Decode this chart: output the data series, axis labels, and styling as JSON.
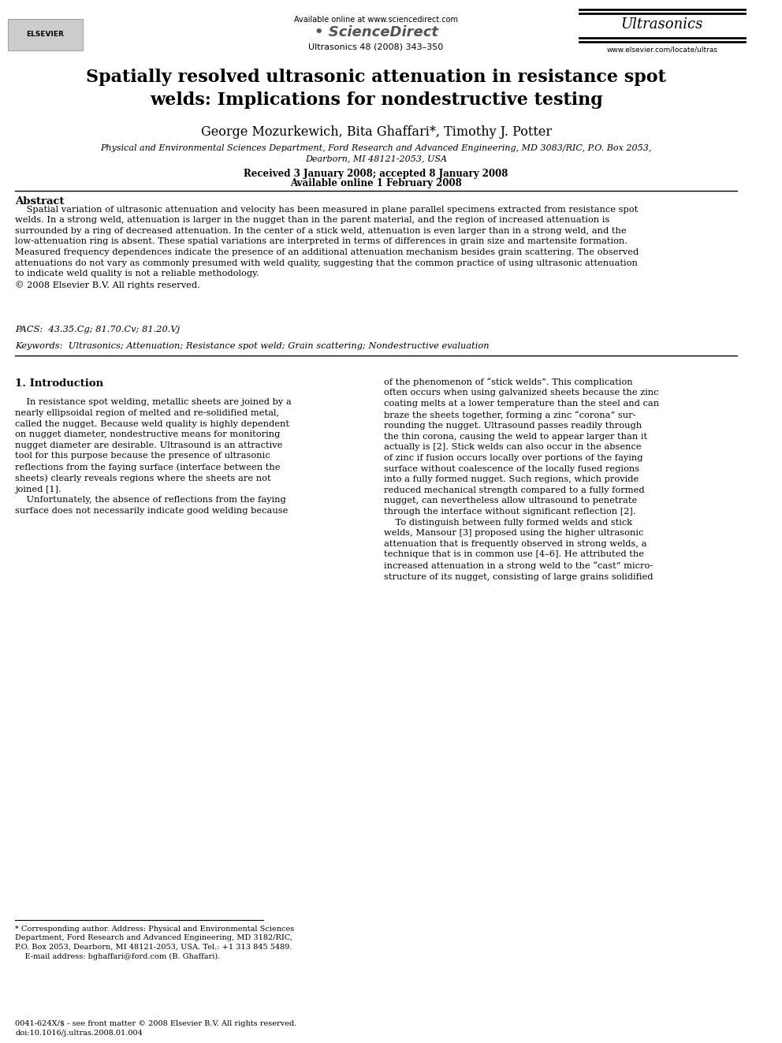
{
  "page_width": 9.92,
  "page_height": 13.23,
  "bg_color": "#ffffff",
  "header_available_online": "Available online at www.sciencedirect.com",
  "header_journal_info": "Ultrasonics 48 (2008) 343–350",
  "header_journal_name": "Ultrasonics",
  "header_website": "www.elsevier.com/locate/ultras",
  "title": "Spatially resolved ultrasonic attenuation in resistance spot\nwelds: Implications for nondestructive testing",
  "authors": "George Mozurkewich, Bita Ghaffari*, Timothy J. Potter",
  "affiliation_line1": "Physical and Environmental Sciences Department, Ford Research and Advanced Engineering, MD 3083/RIC, P.O. Box 2053,",
  "affiliation_line2": "Dearborn, MI 48121-2053, USA",
  "received": "Received 3 January 2008; accepted 8 January 2008",
  "available": "Available online 1 February 2008",
  "abstract_heading": "Abstract",
  "abstract_text": "    Spatial variation of ultrasonic attenuation and velocity has been measured in plane parallel specimens extracted from resistance spot\nwelds. In a strong weld, attenuation is larger in the nugget than in the parent material, and the region of increased attenuation is\nsurrounded by a ring of decreased attenuation. In the center of a stick weld, attenuation is even larger than in a strong weld, and the\nlow-attenuation ring is absent. These spatial variations are interpreted in terms of differences in grain size and martensite formation.\nMeasured frequency dependences indicate the presence of an additional attenuation mechanism besides grain scattering. The observed\nattenuations do not vary as commonly presumed with weld quality, suggesting that the common practice of using ultrasonic attenuation\nto indicate weld quality is not a reliable methodology.\n© 2008 Elsevier B.V. All rights reserved.",
  "pacs": "PACS:  43.35.Cg; 81.70.Cv; 81.20.Vj",
  "keywords": "Keywords:  Ultrasonics; Attenuation; Resistance spot weld; Grain scattering; Nondestructive evaluation",
  "section1_heading": "1. Introduction",
  "col1_text": "    In resistance spot welding, metallic sheets are joined by a\nnearly ellipsoidal region of melted and re-solidified metal,\ncalled the nugget. Because weld quality is highly dependent\non nugget diameter, nondestructive means for monitoring\nnugget diameter are desirable. Ultrasound is an attractive\ntool for this purpose because the presence of ultrasonic\nreflections from the faying surface (interface between the\nsheets) clearly reveals regions where the sheets are not\njoined [1].\n    Unfortunately, the absence of reflections from the faying\nsurface does not necessarily indicate good welding because",
  "col2_text": "of the phenomenon of “stick welds”. This complication\noften occurs when using galvanized sheets because the zinc\ncoating melts at a lower temperature than the steel and can\nbraze the sheets together, forming a zinc “corona” sur-\nrounding the nugget. Ultrasound passes readily through\nthe thin corona, causing the weld to appear larger than it\nactually is [2]. Stick welds can also occur in the absence\nof zinc if fusion occurs locally over portions of the faying\nsurface without coalescence of the locally fused regions\ninto a fully formed nugget. Such regions, which provide\nreduced mechanical strength compared to a fully formed\nnugget, can nevertheless allow ultrasound to penetrate\nthrough the interface without significant reflection [2].\n    To distinguish between fully formed welds and stick\nwelds, Mansour [3] proposed using the higher ultrasonic\nattenuation that is frequently observed in strong welds, a\ntechnique that is in common use [4–6]. He attributed the\nincreased attenuation in a strong weld to the “cast” micro-\nstructure of its nugget, consisting of large grains solidified",
  "footnote_star": "* Corresponding author. Address: Physical and Environmental Sciences\nDepartment, Ford Research and Advanced Engineering, MD 3182/RIC,\nP.O. Box 2053, Dearborn, MI 48121-2053, USA. Tel.: +1 313 845 5489.\n    E-mail address: bghaffari@ford.com (B. Ghaffari).",
  "bottom_left": "0041-624X/$ - see front matter © 2008 Elsevier B.V. All rights reserved.\ndoi:10.1016/j.ultras.2008.01.004"
}
